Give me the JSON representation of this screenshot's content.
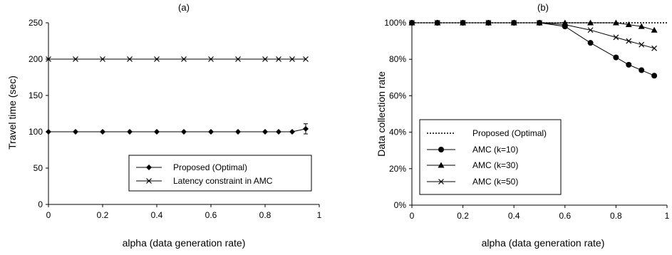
{
  "chart_data": [
    {
      "type": "line",
      "panel_label": "(a)",
      "xlabel": "alpha (data generation rate)",
      "ylabel": "Travel time (sec)",
      "xlim": [
        0,
        1
      ],
      "ylim": [
        0,
        250
      ],
      "x_ticks": [
        "0",
        "0.2",
        "0.4",
        "0.6",
        "0.8",
        "1"
      ],
      "y_ticks": [
        "0",
        "50",
        "100",
        "150",
        "200",
        "250"
      ],
      "grid": false,
      "legend_position": "bottom-right",
      "series": [
        {
          "name": "Proposed (Optimal)",
          "marker": "diamond",
          "line": "solid",
          "x": [
            0,
            0.1,
            0.2,
            0.3,
            0.4,
            0.5,
            0.6,
            0.7,
            0.8,
            0.85,
            0.9,
            0.95
          ],
          "y": [
            100,
            100,
            100,
            100,
            100,
            100,
            100,
            100,
            100,
            100,
            100,
            104
          ],
          "error": [
            0,
            0,
            0,
            0,
            0,
            0,
            0,
            0,
            0,
            0,
            0,
            7
          ]
        },
        {
          "name": "Latency constraint in AMC",
          "marker": "x",
          "line": "solid",
          "x": [
            0,
            0.1,
            0.2,
            0.3,
            0.4,
            0.5,
            0.6,
            0.7,
            0.8,
            0.85,
            0.9,
            0.95
          ],
          "y": [
            200,
            200,
            200,
            200,
            200,
            200,
            200,
            200,
            200,
            200,
            200,
            200
          ]
        }
      ]
    },
    {
      "type": "line",
      "panel_label": "(b)",
      "xlabel": "alpha (data generation rate)",
      "ylabel": "Data collection rate",
      "xlim": [
        0,
        1
      ],
      "ylim": [
        0,
        100
      ],
      "x_ticks": [
        "0",
        "0.2",
        "0.4",
        "0.6",
        "0.8",
        "1"
      ],
      "y_ticks": [
        "0%",
        "20%",
        "40%",
        "60%",
        "80%",
        "100%"
      ],
      "grid": false,
      "legend_position": "bottom-left",
      "series": [
        {
          "name": "Proposed (Optimal)",
          "marker": "none",
          "line": "dotted",
          "x": [
            0,
            1
          ],
          "y": [
            100,
            100
          ]
        },
        {
          "name": "AMC (k=10)",
          "marker": "circle",
          "line": "solid",
          "x": [
            0,
            0.1,
            0.2,
            0.3,
            0.4,
            0.5,
            0.6,
            0.7,
            0.8,
            0.85,
            0.9,
            0.95
          ],
          "y": [
            100,
            100,
            100,
            100,
            100,
            100,
            98,
            89,
            81,
            77,
            74,
            71
          ]
        },
        {
          "name": "AMC (k=30)",
          "marker": "triangle",
          "line": "solid",
          "x": [
            0,
            0.1,
            0.2,
            0.3,
            0.4,
            0.5,
            0.6,
            0.7,
            0.8,
            0.85,
            0.9,
            0.95
          ],
          "y": [
            100,
            100,
            100,
            100,
            100,
            100,
            100,
            100,
            100,
            99,
            98,
            96
          ]
        },
        {
          "name": "AMC (k=50)",
          "marker": "x",
          "line": "solid",
          "x": [
            0,
            0.1,
            0.2,
            0.3,
            0.4,
            0.5,
            0.6,
            0.7,
            0.8,
            0.85,
            0.9,
            0.95
          ],
          "y": [
            100,
            100,
            100,
            100,
            100,
            100,
            99,
            96,
            92,
            90,
            88,
            86
          ]
        }
      ]
    }
  ]
}
